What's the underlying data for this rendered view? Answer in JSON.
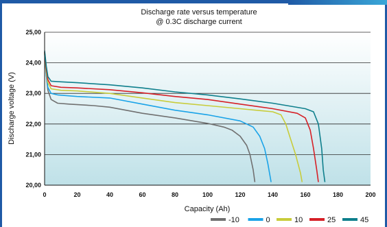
{
  "chart_data": {
    "type": "line",
    "title": "Discharge rate versus temperature",
    "subtitle": "@ 0.3C discharge current",
    "xlabel": "Capacity (Ah)",
    "ylabel": "Discharge voltage (V)",
    "xlim": [
      0,
      200
    ],
    "ylim": [
      20.0,
      25.0
    ],
    "x_ticks": [
      "0",
      "20",
      "40",
      "60",
      "80",
      "100",
      "120",
      "140",
      "160",
      "180",
      "200"
    ],
    "y_ticks": [
      "20,00",
      "21,00",
      "22,00",
      "23,00",
      "24,00",
      "25,00"
    ],
    "grid": "horizontal",
    "legend_position": "bottom-right",
    "series": [
      {
        "name": "-10",
        "color": "#707070",
        "points": [
          [
            0,
            24.35
          ],
          [
            1,
            23.6
          ],
          [
            2,
            23.1
          ],
          [
            4,
            22.8
          ],
          [
            8,
            22.68
          ],
          [
            15,
            22.65
          ],
          [
            30,
            22.6
          ],
          [
            40,
            22.55
          ],
          [
            60,
            22.35
          ],
          [
            80,
            22.2
          ],
          [
            100,
            22.02
          ],
          [
            110,
            21.9
          ],
          [
            115,
            21.8
          ],
          [
            120,
            21.6
          ],
          [
            124,
            21.3
          ],
          [
            126,
            21.0
          ],
          [
            128,
            20.5
          ],
          [
            129,
            20.1
          ]
        ]
      },
      {
        "name": "0",
        "color": "#1aa3e8",
        "points": [
          [
            0,
            24.3
          ],
          [
            1,
            23.6
          ],
          [
            2,
            23.2
          ],
          [
            4,
            23.0
          ],
          [
            8,
            22.95
          ],
          [
            20,
            22.9
          ],
          [
            40,
            22.85
          ],
          [
            60,
            22.65
          ],
          [
            80,
            22.45
          ],
          [
            100,
            22.3
          ],
          [
            120,
            22.1
          ],
          [
            128,
            21.9
          ],
          [
            132,
            21.6
          ],
          [
            135,
            21.2
          ],
          [
            137,
            20.7
          ],
          [
            139,
            20.1
          ]
        ]
      },
      {
        "name": "10",
        "color": "#c8cc3a",
        "points": [
          [
            0,
            24.3
          ],
          [
            1,
            23.7
          ],
          [
            2,
            23.35
          ],
          [
            4,
            23.15
          ],
          [
            10,
            23.1
          ],
          [
            20,
            23.08
          ],
          [
            40,
            23.0
          ],
          [
            60,
            22.85
          ],
          [
            80,
            22.7
          ],
          [
            100,
            22.6
          ],
          [
            120,
            22.5
          ],
          [
            140,
            22.4
          ],
          [
            145,
            22.3
          ],
          [
            148,
            22.0
          ],
          [
            151,
            21.5
          ],
          [
            154,
            21.0
          ],
          [
            157,
            20.4
          ],
          [
            158,
            20.1
          ]
        ]
      },
      {
        "name": "25",
        "color": "#d62027",
        "points": [
          [
            0,
            24.35
          ],
          [
            1,
            23.8
          ],
          [
            2,
            23.45
          ],
          [
            4,
            23.25
          ],
          [
            10,
            23.2
          ],
          [
            20,
            23.18
          ],
          [
            40,
            23.12
          ],
          [
            60,
            23.02
          ],
          [
            80,
            22.9
          ],
          [
            100,
            22.8
          ],
          [
            120,
            22.65
          ],
          [
            140,
            22.5
          ],
          [
            155,
            22.35
          ],
          [
            160,
            22.2
          ],
          [
            163,
            21.8
          ],
          [
            165,
            21.2
          ],
          [
            167,
            20.5
          ],
          [
            168,
            20.1
          ]
        ]
      },
      {
        "name": "45",
        "color": "#0e7f8c",
        "points": [
          [
            0,
            24.4
          ],
          [
            1,
            23.9
          ],
          [
            2,
            23.55
          ],
          [
            4,
            23.4
          ],
          [
            10,
            23.38
          ],
          [
            20,
            23.35
          ],
          [
            40,
            23.28
          ],
          [
            60,
            23.18
          ],
          [
            80,
            23.05
          ],
          [
            100,
            22.95
          ],
          [
            120,
            22.82
          ],
          [
            140,
            22.68
          ],
          [
            160,
            22.5
          ],
          [
            165,
            22.4
          ],
          [
            168,
            22.0
          ],
          [
            170,
            21.2
          ],
          [
            171,
            20.5
          ],
          [
            172,
            20.1
          ]
        ]
      }
    ]
  }
}
